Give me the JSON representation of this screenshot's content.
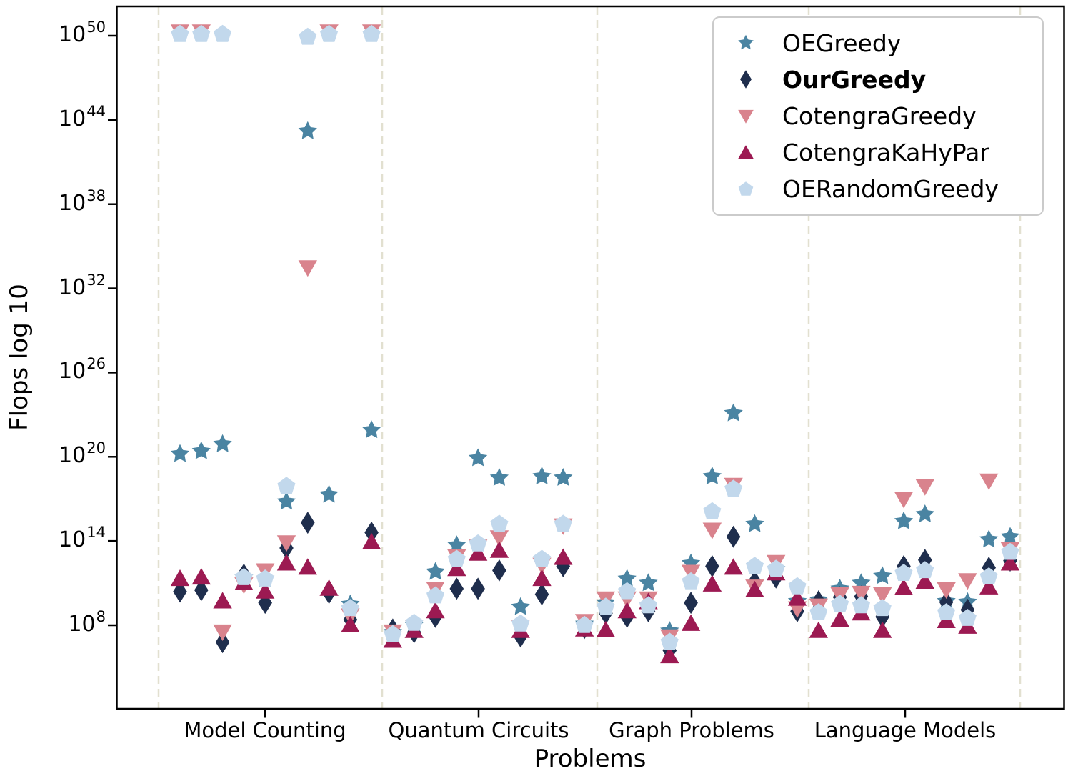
{
  "chart_data": {
    "type": "scatter",
    "xlabel": "Problems",
    "ylabel": "Flops log 10",
    "y_scale": "log10",
    "y_tick_exponents": [
      8,
      14,
      20,
      26,
      32,
      38,
      44,
      50
    ],
    "y_axis_range_exponents": [
      2,
      52
    ],
    "grid": "vertical dashed category separators",
    "legend_position": "upper right",
    "categories": [
      "Model Counting",
      "Quantum Circuits",
      "Graph Problems",
      "Language Models"
    ],
    "problems_per_category": 10,
    "series": [
      {
        "name": "OEGreedy",
        "marker": "star",
        "color": "#4a84a2",
        "bold_in_legend": false,
        "log10_flops": [
          20.2,
          20.4,
          20.9,
          11.4,
          11.3,
          16.8,
          43.2,
          17.3,
          9.5,
          21.9,
          7.5,
          8.0,
          11.8,
          13.7,
          19.9,
          18.5,
          9.3,
          18.6,
          18.5,
          8.1,
          9.6,
          11.3,
          11.0,
          7.6,
          12.4,
          18.6,
          23.1,
          15.2,
          12.0,
          9.7,
          9.8,
          10.6,
          11.0,
          11.5,
          15.4,
          15.9,
          9.7,
          9.65,
          14.1,
          14.3
        ]
      },
      {
        "name": "OurGreedy",
        "marker": "thin-diamond",
        "color": "#1f2e4d",
        "bold_in_legend": true,
        "log10_flops": [
          10.4,
          10.5,
          6.8,
          11.6,
          9.6,
          13.5,
          15.3,
          10.3,
          8.4,
          14.6,
          7.7,
          7.5,
          8.6,
          10.6,
          10.6,
          11.9,
          7.2,
          10.2,
          12.2,
          7.8,
          8.85,
          8.6,
          9.0,
          6.2,
          9.6,
          12.2,
          14.3,
          11.1,
          11.4,
          9.0,
          9.7,
          10.0,
          10.05,
          8.6,
          12.2,
          12.65,
          9.65,
          9.1,
          12.1,
          12.6
        ]
      },
      {
        "name": "CotengraGreedy",
        "marker": "triangle-down",
        "color": "#d9838d",
        "bold_in_legend": false,
        "log10_flops": [
          50.3,
          50.3,
          7.55,
          10.9,
          11.9,
          13.9,
          33.5,
          50.3,
          8.7,
          50.3,
          7.55,
          7.9,
          10.6,
          12.9,
          13.6,
          14.25,
          7.9,
          12.3,
          15.1,
          8.3,
          9.9,
          9.9,
          9.9,
          7.2,
          11.8,
          14.8,
          18.0,
          10.75,
          12.5,
          9.2,
          9.4,
          10.2,
          10.3,
          10.2,
          17.0,
          17.9,
          10.55,
          11.2,
          18.3,
          13.4
        ]
      },
      {
        "name": "CotengraKaHyPar",
        "marker": "triangle-up",
        "color": "#9c1a52",
        "bold_in_legend": false,
        "log10_flops": [
          11.3,
          11.4,
          9.7,
          11.0,
          10.4,
          12.4,
          12.1,
          10.6,
          8.0,
          13.9,
          6.9,
          7.6,
          9.0,
          12.0,
          13.1,
          13.3,
          7.6,
          11.3,
          12.8,
          7.7,
          7.65,
          9.0,
          9.65,
          5.8,
          8.1,
          10.9,
          12.1,
          10.5,
          11.7,
          9.9,
          7.6,
          8.4,
          8.85,
          7.6,
          10.65,
          11.1,
          8.3,
          7.9,
          10.7,
          12.4
        ]
      },
      {
        "name": "OERandomGreedy",
        "marker": "pentagon",
        "color": "#c2d8ec",
        "bold_in_legend": false,
        "log10_flops": [
          50.1,
          50.1,
          50.1,
          11.4,
          11.3,
          17.9,
          49.9,
          50.1,
          9.2,
          50.1,
          7.35,
          8.15,
          10.1,
          12.7,
          13.8,
          15.2,
          8.1,
          12.7,
          15.2,
          8.0,
          9.3,
          10.4,
          9.4,
          6.8,
          11.1,
          16.1,
          17.7,
          12.2,
          12.0,
          10.75,
          8.9,
          9.5,
          9.4,
          9.2,
          11.7,
          11.9,
          8.9,
          8.5,
          11.45,
          13.2
        ]
      }
    ]
  }
}
